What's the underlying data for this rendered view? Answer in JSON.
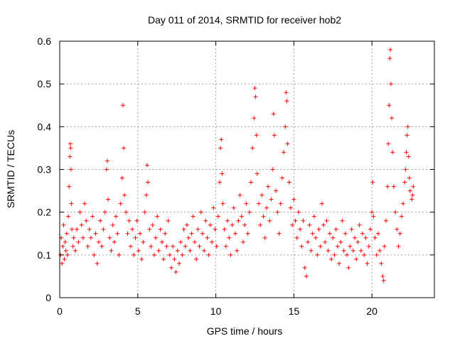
{
  "chart_data": {
    "type": "scatter",
    "title": "Day 011 of 2014, SRMTID for receiver hob2",
    "xlabel": "GPS time / hours",
    "ylabel": "SRMTID / TECUs",
    "xlim": [
      0,
      24
    ],
    "ylim": [
      0,
      0.6
    ],
    "x_ticks": [
      {
        "value": 0,
        "label": "0"
      },
      {
        "value": 5,
        "label": "5"
      },
      {
        "value": 10,
        "label": "10"
      },
      {
        "value": 15,
        "label": "15"
      },
      {
        "value": 20,
        "label": "20"
      }
    ],
    "y_ticks": [
      {
        "value": 0,
        "label": "0"
      },
      {
        "value": 0.1,
        "label": "0.1"
      },
      {
        "value": 0.2,
        "label": "0.2"
      },
      {
        "value": 0.3,
        "label": "0.3"
      },
      {
        "value": 0.4,
        "label": "0.4"
      },
      {
        "value": 0.5,
        "label": "0.5"
      },
      {
        "value": 0.6,
        "label": "0.6"
      }
    ],
    "grid": true,
    "marker": "+",
    "marker_color": "#ff0000",
    "series": [
      {
        "name": "SRMTID",
        "points": [
          [
            0.05,
            0.1
          ],
          [
            0.1,
            0.14
          ],
          [
            0.15,
            0.08
          ],
          [
            0.2,
            0.12
          ],
          [
            0.25,
            0.17
          ],
          [
            0.3,
            0.09
          ],
          [
            0.35,
            0.13
          ],
          [
            0.4,
            0.11
          ],
          [
            0.45,
            0.15
          ],
          [
            0.5,
            0.1
          ],
          [
            0.55,
            0.19
          ],
          [
            0.6,
            0.26
          ],
          [
            0.65,
            0.33
          ],
          [
            0.68,
            0.36
          ],
          [
            0.7,
            0.35
          ],
          [
            0.72,
            0.3
          ],
          [
            0.75,
            0.22
          ],
          [
            0.78,
            0.16
          ],
          [
            0.85,
            0.12
          ],
          [
            0.9,
            0.14
          ],
          [
            1.0,
            0.11
          ],
          [
            1.1,
            0.16
          ],
          [
            1.2,
            0.13
          ],
          [
            1.3,
            0.2
          ],
          [
            1.4,
            0.17
          ],
          [
            1.5,
            0.14
          ],
          [
            1.6,
            0.22
          ],
          [
            1.7,
            0.18
          ],
          [
            1.8,
            0.12
          ],
          [
            1.9,
            0.16
          ],
          [
            2.0,
            0.14
          ],
          [
            2.1,
            0.19
          ],
          [
            2.2,
            0.1
          ],
          [
            2.3,
            0.15
          ],
          [
            2.4,
            0.08
          ],
          [
            2.5,
            0.13
          ],
          [
            2.6,
            0.18
          ],
          [
            2.7,
            0.12
          ],
          [
            2.8,
            0.16
          ],
          [
            2.9,
            0.2
          ],
          [
            3.0,
            0.3
          ],
          [
            3.05,
            0.32
          ],
          [
            3.1,
            0.23
          ],
          [
            3.2,
            0.14
          ],
          [
            3.3,
            0.11
          ],
          [
            3.4,
            0.17
          ],
          [
            3.5,
            0.13
          ],
          [
            3.6,
            0.19
          ],
          [
            3.7,
            0.15
          ],
          [
            3.8,
            0.1
          ],
          [
            3.9,
            0.22
          ],
          [
            4.0,
            0.28
          ],
          [
            4.05,
            0.45
          ],
          [
            4.1,
            0.35
          ],
          [
            4.15,
            0.24
          ],
          [
            4.25,
            0.2
          ],
          [
            4.35,
            0.15
          ],
          [
            4.45,
            0.18
          ],
          [
            4.55,
            0.12
          ],
          [
            4.65,
            0.16
          ],
          [
            4.75,
            0.1
          ],
          [
            4.85,
            0.14
          ],
          [
            4.95,
            0.18
          ],
          [
            5.05,
            0.11
          ],
          [
            5.15,
            0.15
          ],
          [
            5.25,
            0.09
          ],
          [
            5.35,
            0.13
          ],
          [
            5.45,
            0.2
          ],
          [
            5.55,
            0.24
          ],
          [
            5.6,
            0.31
          ],
          [
            5.65,
            0.27
          ],
          [
            5.75,
            0.16
          ],
          [
            5.85,
            0.12
          ],
          [
            5.95,
            0.17
          ],
          [
            6.05,
            0.1
          ],
          [
            6.15,
            0.14
          ],
          [
            6.25,
            0.19
          ],
          [
            6.35,
            0.11
          ],
          [
            6.45,
            0.16
          ],
          [
            6.55,
            0.13
          ],
          [
            6.65,
            0.09
          ],
          [
            6.75,
            0.15
          ],
          [
            6.85,
            0.12
          ],
          [
            6.95,
            0.18
          ],
          [
            7.05,
            0.1
          ],
          [
            7.15,
            0.07
          ],
          [
            7.25,
            0.12
          ],
          [
            7.35,
            0.09
          ],
          [
            7.45,
            0.06
          ],
          [
            7.55,
            0.11
          ],
          [
            7.65,
            0.08
          ],
          [
            7.75,
            0.13
          ],
          [
            7.85,
            0.1
          ],
          [
            7.95,
            0.16
          ],
          [
            8.05,
            0.12
          ],
          [
            8.15,
            0.17
          ],
          [
            8.25,
            0.14
          ],
          [
            8.35,
            0.11
          ],
          [
            8.45,
            0.15
          ],
          [
            8.55,
            0.19
          ],
          [
            8.65,
            0.13
          ],
          [
            8.75,
            0.09
          ],
          [
            8.85,
            0.16
          ],
          [
            8.95,
            0.12
          ],
          [
            9.05,
            0.2
          ],
          [
            9.15,
            0.15
          ],
          [
            9.25,
            0.11
          ],
          [
            9.35,
            0.18
          ],
          [
            9.45,
            0.14
          ],
          [
            9.55,
            0.1
          ],
          [
            9.65,
            0.17
          ],
          [
            9.75,
            0.13
          ],
          [
            9.85,
            0.21
          ],
          [
            9.95,
            0.16
          ],
          [
            10.05,
            0.12
          ],
          [
            10.15,
            0.19
          ],
          [
            10.25,
            0.27
          ],
          [
            10.3,
            0.35
          ],
          [
            10.35,
            0.37
          ],
          [
            10.4,
            0.29
          ],
          [
            10.45,
            0.22
          ],
          [
            10.55,
            0.16
          ],
          [
            10.65,
            0.12
          ],
          [
            10.75,
            0.18
          ],
          [
            10.85,
            0.14
          ],
          [
            10.95,
            0.1
          ],
          [
            11.05,
            0.17
          ],
          [
            11.15,
            0.21
          ],
          [
            11.25,
            0.15
          ],
          [
            11.35,
            0.11
          ],
          [
            11.45,
            0.18
          ],
          [
            11.55,
            0.24
          ],
          [
            11.65,
            0.19
          ],
          [
            11.75,
            0.13
          ],
          [
            11.85,
            0.17
          ],
          [
            11.95,
            0.22
          ],
          [
            12.05,
            0.15
          ],
          [
            12.15,
            0.2
          ],
          [
            12.25,
            0.27
          ],
          [
            12.35,
            0.35
          ],
          [
            12.45,
            0.42
          ],
          [
            12.5,
            0.49
          ],
          [
            12.55,
            0.47
          ],
          [
            12.6,
            0.38
          ],
          [
            12.65,
            0.29
          ],
          [
            12.75,
            0.22
          ],
          [
            12.85,
            0.17
          ],
          [
            12.95,
            0.24
          ],
          [
            13.05,
            0.19
          ],
          [
            13.15,
            0.14
          ],
          [
            13.25,
            0.21
          ],
          [
            13.35,
            0.26
          ],
          [
            13.45,
            0.18
          ],
          [
            13.55,
            0.23
          ],
          [
            13.65,
            0.3
          ],
          [
            13.7,
            0.43
          ],
          [
            13.75,
            0.38
          ],
          [
            13.85,
            0.25
          ],
          [
            13.95,
            0.2
          ],
          [
            14.05,
            0.15
          ],
          [
            14.15,
            0.22
          ],
          [
            14.25,
            0.28
          ],
          [
            14.35,
            0.34
          ],
          [
            14.45,
            0.4
          ],
          [
            14.5,
            0.48
          ],
          [
            14.55,
            0.46
          ],
          [
            14.6,
            0.36
          ],
          [
            14.7,
            0.27
          ],
          [
            14.8,
            0.21
          ],
          [
            14.9,
            0.17
          ],
          [
            15.0,
            0.23
          ],
          [
            15.1,
            0.18
          ],
          [
            15.2,
            0.14
          ],
          [
            15.3,
            0.2
          ],
          [
            15.4,
            0.16
          ],
          [
            15.5,
            0.12
          ],
          [
            15.6,
            0.18
          ],
          [
            15.7,
            0.07
          ],
          [
            15.8,
            0.05
          ],
          [
            15.9,
            0.13
          ],
          [
            16.0,
            0.17
          ],
          [
            16.1,
            0.11
          ],
          [
            16.2,
            0.15
          ],
          [
            16.3,
            0.19
          ],
          [
            16.4,
            0.14
          ],
          [
            16.5,
            0.1
          ],
          [
            16.6,
            0.16
          ],
          [
            16.7,
            0.12
          ],
          [
            16.8,
            0.22
          ],
          [
            16.9,
            0.17
          ],
          [
            17.0,
            0.13
          ],
          [
            17.1,
            0.18
          ],
          [
            17.2,
            0.11
          ],
          [
            17.3,
            0.15
          ],
          [
            17.4,
            0.09
          ],
          [
            17.5,
            0.14
          ],
          [
            17.6,
            0.1
          ],
          [
            17.7,
            0.16
          ],
          [
            17.8,
            0.12
          ],
          [
            17.9,
            0.08
          ],
          [
            18.0,
            0.13
          ],
          [
            18.1,
            0.18
          ],
          [
            18.2,
            0.11
          ],
          [
            18.3,
            0.15
          ],
          [
            18.4,
            0.1
          ],
          [
            18.5,
            0.07
          ],
          [
            18.6,
            0.12
          ],
          [
            18.7,
            0.16
          ],
          [
            18.8,
            0.11
          ],
          [
            18.9,
            0.14
          ],
          [
            19.0,
            0.09
          ],
          [
            19.1,
            0.13
          ],
          [
            19.2,
            0.17
          ],
          [
            19.3,
            0.11
          ],
          [
            19.4,
            0.15
          ],
          [
            19.5,
            0.1
          ],
          [
            19.6,
            0.14
          ],
          [
            19.7,
            0.08
          ],
          [
            19.8,
            0.12
          ],
          [
            19.9,
            0.16
          ],
          [
            20.0,
            0.2
          ],
          [
            20.05,
            0.27
          ],
          [
            20.1,
            0.19
          ],
          [
            20.2,
            0.14
          ],
          [
            20.3,
            0.1
          ],
          [
            20.4,
            0.15
          ],
          [
            20.5,
            0.11
          ],
          [
            20.6,
            0.08
          ],
          [
            20.7,
            0.05
          ],
          [
            20.75,
            0.04
          ],
          [
            20.8,
            0.12
          ],
          [
            20.9,
            0.18
          ],
          [
            21.0,
            0.26
          ],
          [
            21.05,
            0.36
          ],
          [
            21.1,
            0.45
          ],
          [
            21.15,
            0.56
          ],
          [
            21.18,
            0.58
          ],
          [
            21.22,
            0.5
          ],
          [
            21.27,
            0.42
          ],
          [
            21.32,
            0.34
          ],
          [
            21.4,
            0.26
          ],
          [
            21.5,
            0.2
          ],
          [
            21.6,
            0.16
          ],
          [
            21.7,
            0.12
          ],
          [
            21.8,
            0.15
          ],
          [
            21.9,
            0.19
          ],
          [
            22.0,
            0.22
          ],
          [
            22.1,
            0.27
          ],
          [
            22.15,
            0.3
          ],
          [
            22.2,
            0.34
          ],
          [
            22.25,
            0.38
          ],
          [
            22.3,
            0.4
          ],
          [
            22.35,
            0.33
          ],
          [
            22.4,
            0.28
          ],
          [
            22.45,
            0.25
          ],
          [
            22.55,
            0.23
          ],
          [
            22.6,
            0.24
          ],
          [
            22.65,
            0.26
          ]
        ]
      }
    ]
  }
}
